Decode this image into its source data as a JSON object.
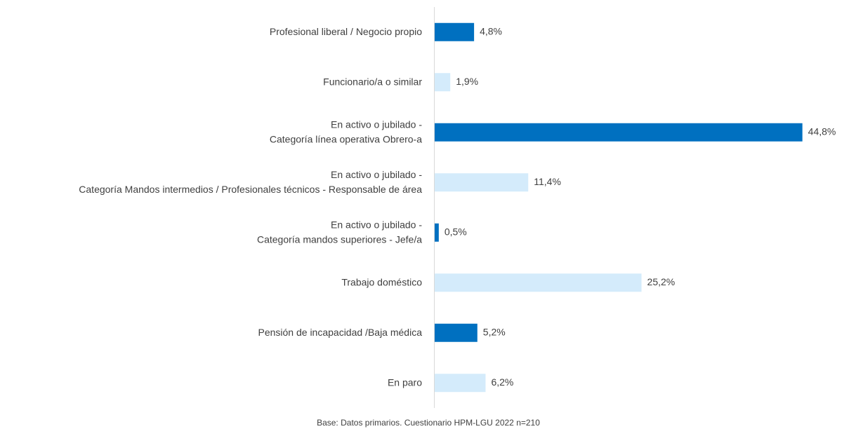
{
  "chart_data": {
    "type": "hbar",
    "categories": [
      [
        "Profesional liberal / Negocio propio"
      ],
      [
        "Funcionario/a o similar"
      ],
      [
        "En activo o jubilado -",
        "Categoría línea operativa Obrero-a"
      ],
      [
        "En activo o jubilado -",
        "Categoría Mandos intermedios / Profesionales técnicos - Responsable de área"
      ],
      [
        "En activo o jubilado -",
        "Categoría mandos superiores - Jefe/a"
      ],
      [
        "Trabajo doméstico"
      ],
      [
        "Pensión  de incapacidad /Baja médica"
      ],
      [
        "En paro"
      ]
    ],
    "values": [
      4.8,
      1.9,
      44.8,
      11.4,
      0.5,
      25.2,
      5.2,
      6.2
    ],
    "value_labels": [
      "4,8%",
      "1,9%",
      "44,8%",
      "11,4%",
      "0,5%",
      "25,2%",
      "5,2%",
      "6,2%"
    ],
    "colors": [
      "#0070c0",
      "#d4ebfb",
      "#0070c0",
      "#d4ebfb",
      "#0070c0",
      "#d4ebfb",
      "#0070c0",
      "#d4ebfb"
    ],
    "xlim": [
      0,
      45
    ],
    "note": "Base: Datos primarios. Cuestionario HPM-LGU 2022 n=210"
  }
}
